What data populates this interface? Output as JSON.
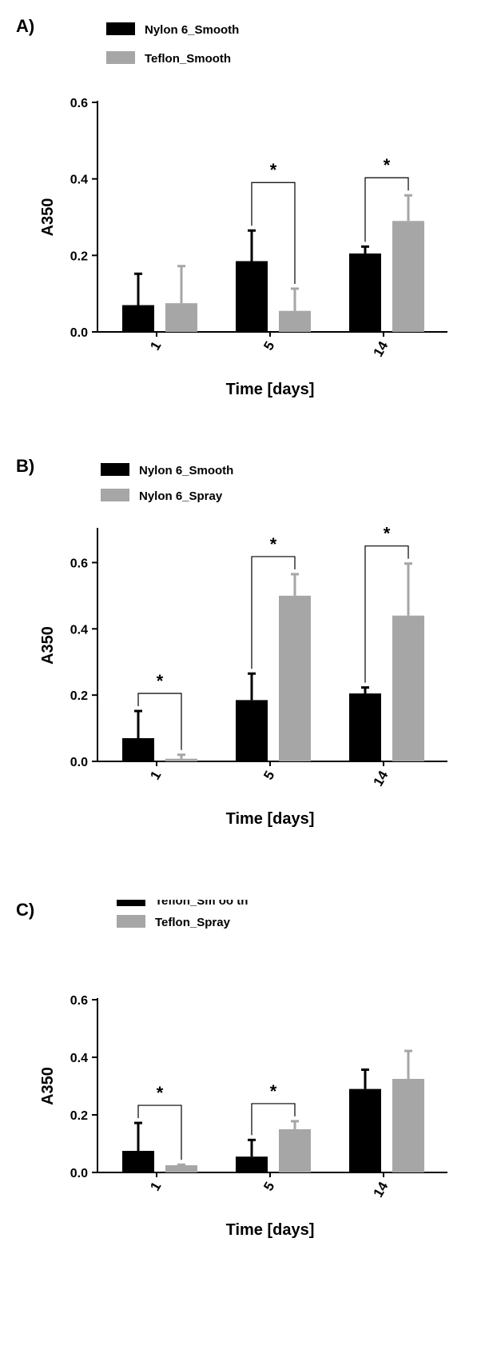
{
  "colors": {
    "series1": "#000000",
    "series2": "#a6a6a6",
    "axis": "#000000"
  },
  "chart_data": [
    {
      "panel_label": "A)",
      "type": "bar",
      "xlabel": "Time [days]",
      "ylabel": "A350",
      "categories": [
        "1",
        "5",
        "14"
      ],
      "ylim": [
        0,
        0.6
      ],
      "yticks": [
        "0.0",
        "0.2",
        "0.4",
        "0.6"
      ],
      "legend_position": "top-left",
      "series": [
        {
          "name": "Nylon 6_Smooth",
          "values": [
            0.07,
            0.185,
            0.205
          ],
          "errors": [
            0.082,
            0.08,
            0.018
          ]
        },
        {
          "name": "Teflon_Smooth",
          "values": [
            0.075,
            0.055,
            0.29
          ],
          "errors": [
            0.097,
            0.058,
            0.067
          ]
        }
      ],
      "significance": [
        {
          "category": 1,
          "label": "*"
        },
        {
          "category": 2,
          "label": "*"
        }
      ]
    },
    {
      "panel_label": "B)",
      "type": "bar",
      "xlabel": "Time [days]",
      "ylabel": "A350",
      "categories": [
        "1",
        "5",
        "14"
      ],
      "ylim": [
        0,
        0.7
      ],
      "yticks": [
        "0.0",
        "0.2",
        "0.4",
        "0.6"
      ],
      "legend_position": "top-left",
      "series": [
        {
          "name": "Nylon 6_Smooth",
          "values": [
            0.07,
            0.185,
            0.205
          ],
          "errors": [
            0.082,
            0.08,
            0.018
          ]
        },
        {
          "name": "Nylon 6_Spray",
          "values": [
            0.008,
            0.5,
            0.44
          ],
          "errors": [
            0.012,
            0.065,
            0.157
          ]
        }
      ],
      "significance": [
        {
          "category": 0,
          "label": "*"
        },
        {
          "category": 1,
          "label": "*"
        },
        {
          "category": 2,
          "label": "*"
        }
      ]
    },
    {
      "panel_label": "C)",
      "type": "bar",
      "xlabel": "Time [days]",
      "ylabel": "A350",
      "categories": [
        "1",
        "5",
        "14"
      ],
      "ylim": [
        0,
        0.6
      ],
      "yticks": [
        "0.0",
        "0.2",
        "0.4",
        "0.6"
      ],
      "legend_position": "top-left",
      "series": [
        {
          "name": "Teflon_Sm oo th",
          "values": [
            0.075,
            0.055,
            0.29
          ],
          "errors": [
            0.097,
            0.058,
            0.067
          ]
        },
        {
          "name": "Teflon_Spray",
          "values": [
            0.025,
            0.15,
            0.325
          ],
          "errors": [
            0.002,
            0.028,
            0.097
          ]
        }
      ],
      "significance": [
        {
          "category": 0,
          "label": "*"
        },
        {
          "category": 1,
          "label": "*"
        }
      ]
    }
  ]
}
